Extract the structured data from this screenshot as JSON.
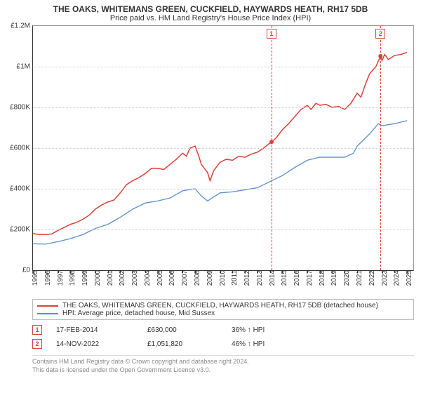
{
  "title_main": "THE OAKS, WHITEMANS GREEN, CUCKFIELD, HAYWARDS HEATH, RH17 5DB",
  "title_sub": "Price paid vs. HM Land Registry's House Price Index (HPI)",
  "chart": {
    "type": "line",
    "background_color": "#ffffff",
    "gridline_color": "#cccccc",
    "axis_color": "#333333",
    "x_start": 1995,
    "x_end": 2025.5,
    "x_ticks": [
      1995,
      1996,
      1997,
      1998,
      1999,
      2000,
      2001,
      2002,
      2003,
      2004,
      2005,
      2006,
      2007,
      2008,
      2009,
      2010,
      2011,
      2012,
      2013,
      2014,
      2015,
      2016,
      2017,
      2018,
      2019,
      2020,
      2021,
      2022,
      2023,
      2024,
      2025
    ],
    "y_min": 0,
    "y_max": 1200000,
    "y_ticks": [
      {
        "v": 0,
        "label": "£0"
      },
      {
        "v": 200000,
        "label": "£200K"
      },
      {
        "v": 400000,
        "label": "£400K"
      },
      {
        "v": 600000,
        "label": "£600K"
      },
      {
        "v": 800000,
        "label": "£800K"
      },
      {
        "v": 1000000,
        "label": "£1M"
      },
      {
        "v": 1200000,
        "label": "£1.2M"
      }
    ],
    "series": [
      {
        "name": "property",
        "color": "#d9403a",
        "width": 1.5,
        "points": [
          [
            1995,
            180000
          ],
          [
            1995.5,
            175000
          ],
          [
            1996,
            175000
          ],
          [
            1996.5,
            178000
          ],
          [
            1997,
            195000
          ],
          [
            1997.5,
            210000
          ],
          [
            1998,
            225000
          ],
          [
            1998.5,
            235000
          ],
          [
            1999,
            250000
          ],
          [
            1999.5,
            270000
          ],
          [
            2000,
            300000
          ],
          [
            2000.5,
            320000
          ],
          [
            2001,
            335000
          ],
          [
            2001.5,
            345000
          ],
          [
            2002,
            380000
          ],
          [
            2002.5,
            420000
          ],
          [
            2003,
            440000
          ],
          [
            2003.5,
            455000
          ],
          [
            2004,
            475000
          ],
          [
            2004.5,
            500000
          ],
          [
            2005,
            500000
          ],
          [
            2005.5,
            495000
          ],
          [
            2006,
            520000
          ],
          [
            2006.5,
            545000
          ],
          [
            2007,
            575000
          ],
          [
            2007.3,
            560000
          ],
          [
            2007.6,
            600000
          ],
          [
            2008,
            610000
          ],
          [
            2008.3,
            560000
          ],
          [
            2008.5,
            520000
          ],
          [
            2009,
            480000
          ],
          [
            2009.2,
            440000
          ],
          [
            2009.5,
            490000
          ],
          [
            2010,
            530000
          ],
          [
            2010.5,
            545000
          ],
          [
            2011,
            540000
          ],
          [
            2011.5,
            560000
          ],
          [
            2012,
            555000
          ],
          [
            2012.5,
            570000
          ],
          [
            2013,
            580000
          ],
          [
            2013.5,
            600000
          ],
          [
            2014,
            625000
          ],
          [
            2014.13,
            630000
          ],
          [
            2014.5,
            650000
          ],
          [
            2015,
            690000
          ],
          [
            2015.5,
            720000
          ],
          [
            2016,
            755000
          ],
          [
            2016.5,
            790000
          ],
          [
            2017,
            810000
          ],
          [
            2017.3,
            790000
          ],
          [
            2017.7,
            820000
          ],
          [
            2018,
            810000
          ],
          [
            2018.5,
            815000
          ],
          [
            2019,
            800000
          ],
          [
            2019.5,
            805000
          ],
          [
            2020,
            790000
          ],
          [
            2020.5,
            820000
          ],
          [
            2021,
            870000
          ],
          [
            2021.3,
            850000
          ],
          [
            2021.7,
            920000
          ],
          [
            2022,
            965000
          ],
          [
            2022.5,
            1000000
          ],
          [
            2022.87,
            1051820
          ],
          [
            2023,
            1030000
          ],
          [
            2023.2,
            1060000
          ],
          [
            2023.5,
            1035000
          ],
          [
            2024,
            1055000
          ],
          [
            2024.5,
            1060000
          ],
          [
            2025,
            1070000
          ]
        ]
      },
      {
        "name": "hpi",
        "color": "#5a8fc8",
        "width": 1.3,
        "points": [
          [
            1995,
            130000
          ],
          [
            1996,
            128000
          ],
          [
            1997,
            140000
          ],
          [
            1998,
            155000
          ],
          [
            1999,
            175000
          ],
          [
            2000,
            205000
          ],
          [
            2001,
            225000
          ],
          [
            2002,
            260000
          ],
          [
            2003,
            300000
          ],
          [
            2004,
            330000
          ],
          [
            2005,
            340000
          ],
          [
            2006,
            355000
          ],
          [
            2007,
            390000
          ],
          [
            2008,
            400000
          ],
          [
            2008.5,
            365000
          ],
          [
            2009,
            340000
          ],
          [
            2009.5,
            360000
          ],
          [
            2010,
            380000
          ],
          [
            2011,
            385000
          ],
          [
            2012,
            395000
          ],
          [
            2013,
            405000
          ],
          [
            2014,
            435000
          ],
          [
            2015,
            465000
          ],
          [
            2016,
            505000
          ],
          [
            2017,
            540000
          ],
          [
            2018,
            555000
          ],
          [
            2019,
            555000
          ],
          [
            2020,
            555000
          ],
          [
            2020.7,
            575000
          ],
          [
            2021,
            610000
          ],
          [
            2022,
            670000
          ],
          [
            2022.7,
            720000
          ],
          [
            2023,
            710000
          ],
          [
            2024,
            720000
          ],
          [
            2025,
            735000
          ]
        ]
      }
    ],
    "markers": [
      {
        "n": "1",
        "x": 2014.13,
        "y": 630000,
        "color": "#d9403a"
      },
      {
        "n": "2",
        "x": 2022.87,
        "y": 1051820,
        "color": "#d9403a"
      }
    ]
  },
  "legend": [
    {
      "color": "#d9403a",
      "label": "THE OAKS, WHITEMANS GREEN, CUCKFIELD, HAYWARDS HEATH, RH17 5DB (detached house)"
    },
    {
      "color": "#5a8fc8",
      "label": "HPI: Average price, detached house, Mid Sussex"
    }
  ],
  "sales": [
    {
      "n": "1",
      "color": "#d9403a",
      "date": "17-FEB-2014",
      "price": "£630,000",
      "delta": "36% ↑ HPI"
    },
    {
      "n": "2",
      "color": "#d9403a",
      "date": "14-NOV-2022",
      "price": "£1,051,820",
      "delta": "46% ↑ HPI"
    }
  ],
  "footer_line1": "Contains HM Land Registry data © Crown copyright and database right 2024.",
  "footer_line2": "This data is licensed under the Open Government Licence v3.0."
}
